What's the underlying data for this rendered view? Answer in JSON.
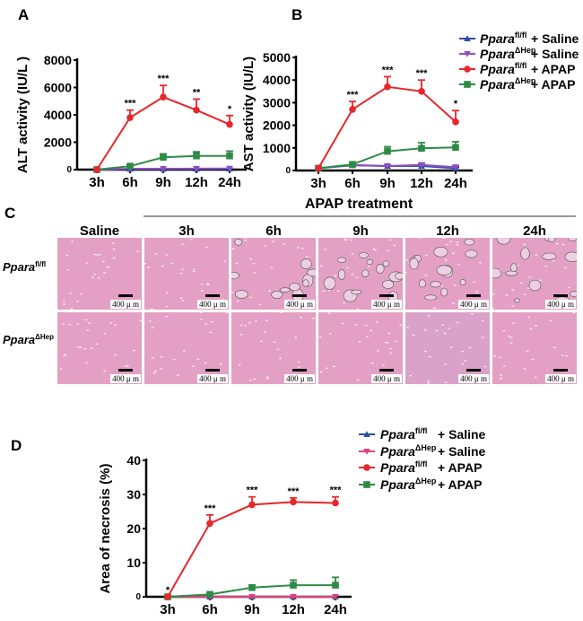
{
  "panel_labels": {
    "a": "A",
    "b": "B",
    "c": "C",
    "d": "D"
  },
  "colors": {
    "fl_saline": "#2b4fa8",
    "hep_saline_b": "#8b4fc0",
    "hep_saline_d": "#e0407f",
    "fl_apap": "#e8262b",
    "hep_apap": "#2e8b45"
  },
  "legend": [
    {
      "gene": "Ppara",
      "sup": "fl/fl",
      "treat": "+ Saline",
      "marker": "triangle-up",
      "color": "#2b4fa8"
    },
    {
      "gene": "Ppara",
      "sup": "ΔHep",
      "treat": "+ Saline",
      "marker": "triangle-down",
      "color": "#8b4fc0"
    },
    {
      "gene": "Ppara",
      "sup": "fl/fl",
      "treat": "+ APAP",
      "marker": "circle",
      "color": "#e8262b"
    },
    {
      "gene": "Ppara",
      "sup": "ΔHep",
      "treat": "+ APAP",
      "marker": "square",
      "color": "#2e8b45"
    }
  ],
  "legend_d": [
    {
      "gene": "Ppara",
      "sup": "fl/fl",
      "treat": "+ Saline",
      "marker": "triangle-up",
      "color": "#2b4fa8"
    },
    {
      "gene": "Ppara",
      "sup": "ΔHep",
      "treat": "+ Saline",
      "marker": "triangle-down",
      "color": "#e0407f"
    },
    {
      "gene": "Ppara",
      "sup": "fl/fl",
      "treat": "+ APAP",
      "marker": "circle",
      "color": "#e8262b"
    },
    {
      "gene": "Ppara",
      "sup": "ΔHep",
      "treat": "+ APAP",
      "marker": "square",
      "color": "#2e8b45"
    }
  ],
  "histology": {
    "group_title": "APAP treatment",
    "columns": [
      "Saline",
      "3h",
      "6h",
      "9h",
      "12h",
      "24h"
    ],
    "rows": [
      {
        "gene": "Ppara",
        "sup": "fl/fl"
      },
      {
        "gene": "Ppara",
        "sup": "ΔHep"
      }
    ],
    "scale_bar": "400 μ m"
  },
  "chart_data": [
    {
      "id": "A",
      "type": "line",
      "categories": [
        "3h",
        "6h",
        "9h",
        "12h",
        "24h"
      ],
      "ylabel": "ALT activity (IU/L )",
      "ylim": [
        0,
        8000
      ],
      "yticks": [
        0,
        2000,
        4000,
        6000,
        8000
      ],
      "significance": [
        "",
        "***",
        "***",
        "**",
        "*"
      ],
      "series": [
        {
          "legend": 0,
          "values": [
            0,
            50,
            50,
            50,
            60
          ],
          "errors": [
            0,
            20,
            20,
            20,
            20
          ]
        },
        {
          "legend": 1,
          "values": [
            0,
            60,
            60,
            70,
            80
          ],
          "errors": [
            0,
            20,
            20,
            20,
            20
          ]
        },
        {
          "legend": 3,
          "values": [
            0,
            250,
            900,
            1000,
            1000
          ],
          "errors": [
            0,
            100,
            250,
            300,
            350
          ]
        },
        {
          "legend": 2,
          "values": [
            0,
            3800,
            5300,
            4350,
            3300
          ],
          "errors": [
            0,
            550,
            850,
            800,
            650
          ]
        }
      ]
    },
    {
      "id": "B",
      "type": "line",
      "categories": [
        "3h",
        "6h",
        "9h",
        "12h",
        "24h"
      ],
      "ylabel": "AST activity (IU/L)",
      "ylim": [
        0,
        5000
      ],
      "yticks": [
        0,
        1000,
        2000,
        3000,
        4000,
        5000
      ],
      "significance": [
        "",
        "***",
        "***",
        "***",
        "*"
      ],
      "series": [
        {
          "legend": 0,
          "values": [
            100,
            230,
            200,
            200,
            100
          ],
          "errors": [
            0,
            30,
            30,
            40,
            30
          ]
        },
        {
          "legend": 1,
          "values": [
            100,
            250,
            200,
            250,
            150
          ],
          "errors": [
            0,
            40,
            40,
            60,
            50
          ]
        },
        {
          "legend": 3,
          "values": [
            100,
            270,
            850,
            980,
            1020
          ],
          "errors": [
            0,
            50,
            200,
            250,
            250
          ]
        },
        {
          "legend": 2,
          "values": [
            100,
            2700,
            3700,
            3500,
            2150
          ],
          "errors": [
            0,
            350,
            450,
            500,
            500
          ]
        }
      ]
    },
    {
      "id": "D",
      "type": "line",
      "categories": [
        "3h",
        "6h",
        "9h",
        "12h",
        "24h"
      ],
      "ylabel": "Area of necrosis (%)",
      "ylim": [
        0,
        40
      ],
      "yticks": [
        0,
        10,
        20,
        30,
        40
      ],
      "significance": [
        "*",
        "***",
        "***",
        "***",
        "***"
      ],
      "series": [
        {
          "legend": 0,
          "values": [
            0,
            0,
            0,
            0,
            0
          ],
          "errors": [
            0,
            0,
            0,
            0,
            0
          ]
        },
        {
          "legend": 1,
          "values": [
            0,
            0,
            0,
            0,
            0
          ],
          "errors": [
            0,
            0,
            0,
            0,
            0
          ]
        },
        {
          "legend": 3,
          "values": [
            0,
            0.7,
            2.7,
            3.4,
            3.4
          ],
          "errors": [
            0,
            0.3,
            0.7,
            1.5,
            2.3
          ]
        },
        {
          "legend": 2,
          "values": [
            0,
            21.5,
            27,
            27.8,
            27.5
          ],
          "errors": [
            0,
            2.5,
            2.3,
            1.2,
            1.8
          ]
        }
      ]
    }
  ]
}
